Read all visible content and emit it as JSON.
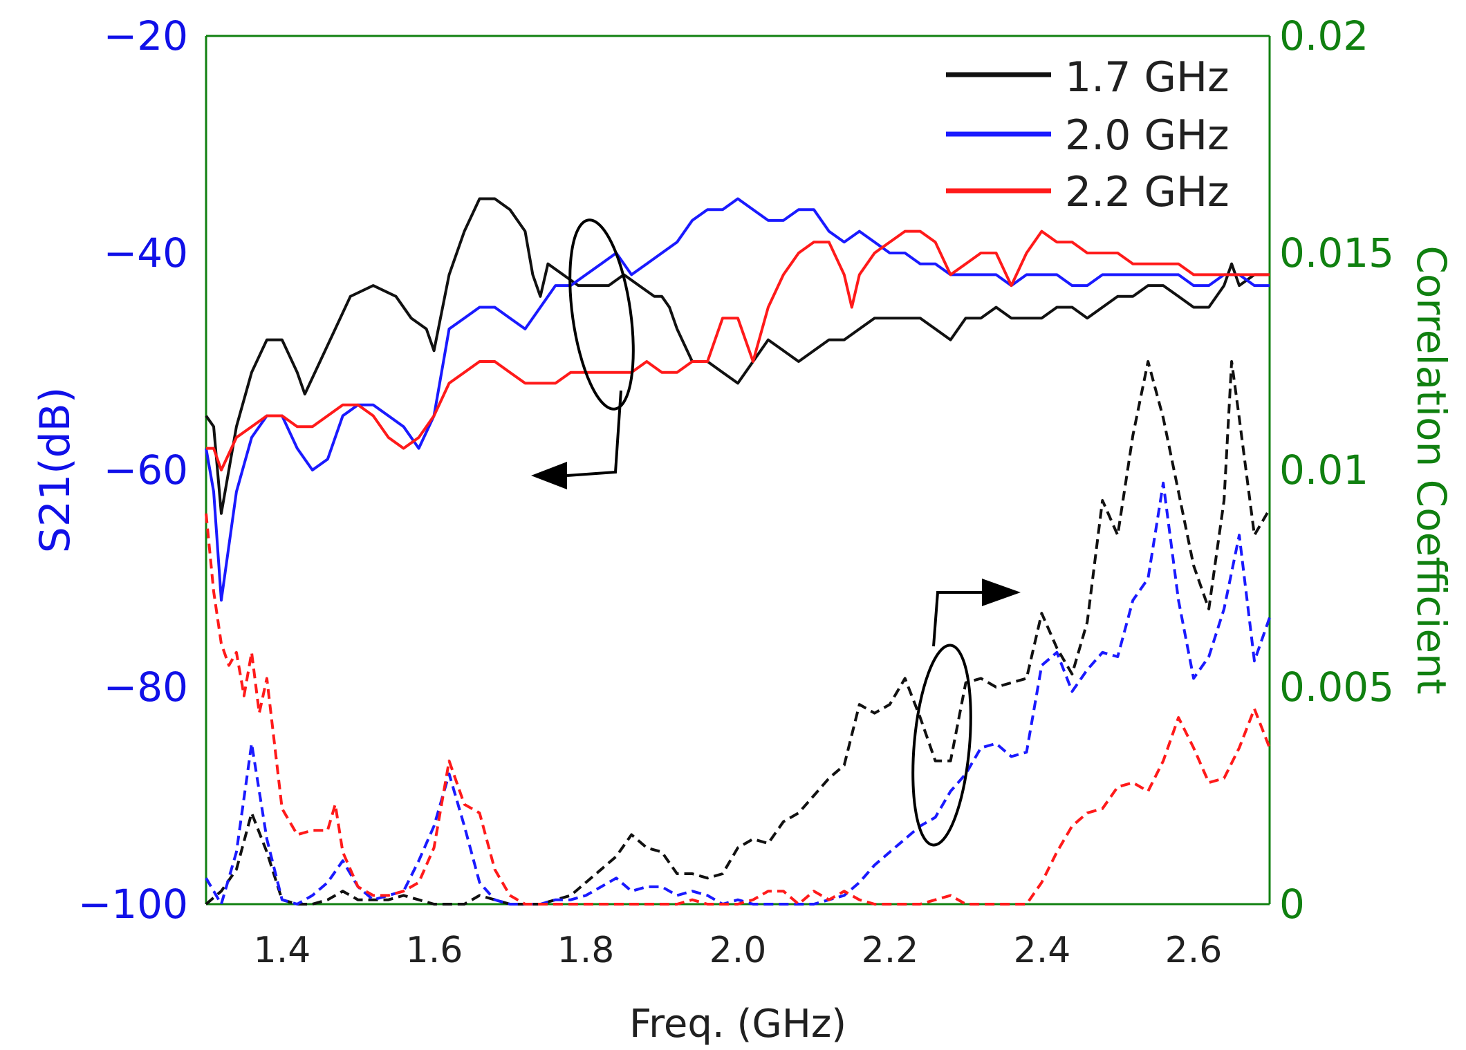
{
  "chart_data": {
    "type": "line",
    "title": "",
    "xlabel": "Freq. (GHz)",
    "ylabel_left": "S21(dB)",
    "ylabel_right": "Correlation Coefficient",
    "xlim": [
      1.3,
      2.7
    ],
    "ylim_left": [
      -100,
      -20
    ],
    "ylim_right": [
      0,
      0.02
    ],
    "x_ticks": [
      "1.4",
      "1.6",
      "1.8",
      "2.0",
      "2.2",
      "2.4",
      "2.6"
    ],
    "y_left_ticks": [
      "−20",
      "−40",
      "−60",
      "−80",
      "−100"
    ],
    "y_right_ticks": [
      "0.02",
      "0.015",
      "0.01",
      "0.005",
      "0"
    ],
    "colors": {
      "left_axis": "#1010e8",
      "right_axis": "#108010",
      "s_1_7": "#111111",
      "s_2_0": "#1a1aff",
      "s_2_2": "#ff1a1a"
    },
    "legend": [
      {
        "label": "1.7 GHz",
        "color": "#111111"
      },
      {
        "label": "2.0 GHz",
        "color": "#1a1aff"
      },
      {
        "label": "2.2 GHz",
        "color": "#ff1a1a"
      }
    ],
    "legend_position": "top-right",
    "series": [
      {
        "name": "1.7 GHz S21",
        "axis": "left",
        "style": "solid",
        "color": "#111111",
        "x": [
          1.3,
          1.31,
          1.32,
          1.34,
          1.36,
          1.38,
          1.4,
          1.42,
          1.43,
          1.45,
          1.47,
          1.49,
          1.52,
          1.55,
          1.57,
          1.59,
          1.6,
          1.62,
          1.64,
          1.66,
          1.68,
          1.7,
          1.72,
          1.73,
          1.74,
          1.75,
          1.77,
          1.79,
          1.81,
          1.83,
          1.85,
          1.87,
          1.89,
          1.9,
          1.91,
          1.92,
          1.94,
          1.96,
          1.98,
          2.0,
          2.02,
          2.04,
          2.06,
          2.08,
          2.1,
          2.12,
          2.14,
          2.16,
          2.18,
          2.2,
          2.22,
          2.24,
          2.26,
          2.28,
          2.3,
          2.32,
          2.34,
          2.36,
          2.38,
          2.4,
          2.42,
          2.44,
          2.46,
          2.48,
          2.5,
          2.52,
          2.54,
          2.56,
          2.58,
          2.6,
          2.62,
          2.64,
          2.65,
          2.66,
          2.68,
          2.7
        ],
        "y": [
          -55,
          -56,
          -64,
          -56,
          -51,
          -48,
          -48,
          -51,
          -53,
          -50,
          -47,
          -44,
          -43,
          -44,
          -46,
          -47,
          -49,
          -42,
          -38,
          -35,
          -35,
          -36,
          -38,
          -42,
          -44,
          -41,
          -42,
          -43,
          -43,
          -43,
          -42,
          -43,
          -44,
          -44,
          -45,
          -47,
          -50,
          -50,
          -51,
          -52,
          -50,
          -48,
          -49,
          -50,
          -49,
          -48,
          -48,
          -47,
          -46,
          -46,
          -46,
          -46,
          -47,
          -48,
          -46,
          -46,
          -45,
          -46,
          -46,
          -46,
          -45,
          -45,
          -46,
          -45,
          -44,
          -44,
          -43,
          -43,
          -44,
          -45,
          -45,
          -43,
          -41,
          -43,
          -42,
          -42
        ]
      },
      {
        "name": "2.0 GHz S21",
        "axis": "left",
        "style": "solid",
        "color": "#1a1aff",
        "x": [
          1.3,
          1.31,
          1.32,
          1.34,
          1.36,
          1.38,
          1.4,
          1.42,
          1.44,
          1.46,
          1.48,
          1.5,
          1.52,
          1.54,
          1.56,
          1.58,
          1.6,
          1.62,
          1.64,
          1.66,
          1.68,
          1.7,
          1.72,
          1.74,
          1.76,
          1.78,
          1.8,
          1.82,
          1.84,
          1.86,
          1.88,
          1.9,
          1.92,
          1.94,
          1.96,
          1.98,
          2.0,
          2.02,
          2.04,
          2.06,
          2.08,
          2.1,
          2.12,
          2.14,
          2.16,
          2.18,
          2.2,
          2.22,
          2.24,
          2.26,
          2.28,
          2.3,
          2.32,
          2.34,
          2.36,
          2.38,
          2.4,
          2.42,
          2.44,
          2.46,
          2.48,
          2.5,
          2.52,
          2.54,
          2.56,
          2.58,
          2.6,
          2.62,
          2.64,
          2.66,
          2.68,
          2.7
        ],
        "y": [
          -58,
          -62,
          -72,
          -62,
          -57,
          -55,
          -55,
          -58,
          -60,
          -59,
          -55,
          -54,
          -54,
          -55,
          -56,
          -58,
          -55,
          -47,
          -46,
          -45,
          -45,
          -46,
          -47,
          -45,
          -43,
          -43,
          -42,
          -41,
          -40,
          -42,
          -41,
          -40,
          -39,
          -37,
          -36,
          -36,
          -35,
          -36,
          -37,
          -37,
          -36,
          -36,
          -38,
          -39,
          -38,
          -39,
          -40,
          -40,
          -41,
          -41,
          -42,
          -42,
          -42,
          -42,
          -43,
          -42,
          -42,
          -42,
          -43,
          -43,
          -42,
          -42,
          -42,
          -42,
          -42,
          -42,
          -43,
          -43,
          -42,
          -42,
          -43,
          -43
        ]
      },
      {
        "name": "2.2 GHz S21",
        "axis": "left",
        "style": "solid",
        "color": "#ff1a1a",
        "x": [
          1.3,
          1.31,
          1.32,
          1.34,
          1.36,
          1.38,
          1.4,
          1.42,
          1.44,
          1.46,
          1.48,
          1.5,
          1.52,
          1.54,
          1.56,
          1.58,
          1.6,
          1.62,
          1.64,
          1.66,
          1.68,
          1.7,
          1.72,
          1.74,
          1.76,
          1.78,
          1.8,
          1.82,
          1.84,
          1.86,
          1.88,
          1.9,
          1.92,
          1.94,
          1.96,
          1.98,
          2.0,
          2.02,
          2.04,
          2.06,
          2.08,
          2.1,
          2.12,
          2.14,
          2.15,
          2.16,
          2.18,
          2.2,
          2.22,
          2.24,
          2.26,
          2.28,
          2.3,
          2.32,
          2.34,
          2.36,
          2.38,
          2.4,
          2.42,
          2.44,
          2.46,
          2.48,
          2.5,
          2.52,
          2.54,
          2.56,
          2.58,
          2.6,
          2.62,
          2.64,
          2.66,
          2.68,
          2.7
        ],
        "y": [
          -58,
          -58,
          -60,
          -57,
          -56,
          -55,
          -55,
          -56,
          -56,
          -55,
          -54,
          -54,
          -55,
          -57,
          -58,
          -57,
          -55,
          -52,
          -51,
          -50,
          -50,
          -51,
          -52,
          -52,
          -52,
          -51,
          -51,
          -51,
          -51,
          -51,
          -50,
          -51,
          -51,
          -50,
          -50,
          -46,
          -46,
          -50,
          -45,
          -42,
          -40,
          -39,
          -39,
          -42,
          -45,
          -42,
          -40,
          -39,
          -38,
          -38,
          -39,
          -42,
          -41,
          -40,
          -40,
          -43,
          -40,
          -38,
          -39,
          -39,
          -40,
          -40,
          -40,
          -41,
          -41,
          -41,
          -41,
          -42,
          -42,
          -42,
          -42,
          -42,
          -42
        ]
      },
      {
        "name": "1.7 GHz Correlation",
        "axis": "right",
        "style": "dashed",
        "color": "#111111",
        "x": [
          1.3,
          1.32,
          1.34,
          1.36,
          1.38,
          1.4,
          1.42,
          1.44,
          1.46,
          1.48,
          1.5,
          1.52,
          1.54,
          1.56,
          1.58,
          1.6,
          1.62,
          1.64,
          1.66,
          1.68,
          1.7,
          1.72,
          1.74,
          1.76,
          1.78,
          1.8,
          1.82,
          1.84,
          1.86,
          1.88,
          1.9,
          1.92,
          1.94,
          1.96,
          1.98,
          2.0,
          2.02,
          2.04,
          2.06,
          2.08,
          2.1,
          2.12,
          2.14,
          2.16,
          2.18,
          2.2,
          2.22,
          2.24,
          2.26,
          2.28,
          2.3,
          2.32,
          2.34,
          2.36,
          2.38,
          2.4,
          2.42,
          2.44,
          2.46,
          2.48,
          2.5,
          2.52,
          2.54,
          2.56,
          2.58,
          2.6,
          2.62,
          2.64,
          2.65,
          2.66,
          2.68,
          2.7
        ],
        "y": [
          0.0,
          0.0003,
          0.0008,
          0.0021,
          0.0012,
          0.0001,
          0.0,
          0.0,
          0.0001,
          0.0003,
          0.0001,
          0.0001,
          0.0001,
          0.0002,
          0.0001,
          0.0,
          0.0,
          0.0,
          0.0002,
          0.0001,
          0.0,
          0.0,
          0.0,
          0.0001,
          0.0002,
          0.0005,
          0.0008,
          0.0011,
          0.0016,
          0.0013,
          0.0012,
          0.0007,
          0.0007,
          0.0006,
          0.0007,
          0.0013,
          0.0015,
          0.0014,
          0.0019,
          0.0021,
          0.0025,
          0.0029,
          0.0032,
          0.0046,
          0.0044,
          0.0046,
          0.0052,
          0.0043,
          0.0033,
          0.0033,
          0.0051,
          0.0052,
          0.005,
          0.0051,
          0.0052,
          0.0067,
          0.0059,
          0.0053,
          0.0065,
          0.0093,
          0.0085,
          0.0108,
          0.0125,
          0.0112,
          0.0095,
          0.0078,
          0.0068,
          0.0093,
          0.0125,
          0.0112,
          0.0085,
          0.0091
        ]
      },
      {
        "name": "2.0 GHz Correlation",
        "axis": "right",
        "style": "dashed",
        "color": "#1a1aff",
        "x": [
          1.3,
          1.32,
          1.34,
          1.36,
          1.38,
          1.4,
          1.42,
          1.44,
          1.46,
          1.48,
          1.5,
          1.52,
          1.54,
          1.56,
          1.58,
          1.6,
          1.62,
          1.64,
          1.66,
          1.68,
          1.7,
          1.72,
          1.74,
          1.76,
          1.78,
          1.8,
          1.82,
          1.84,
          1.86,
          1.88,
          1.9,
          1.92,
          1.94,
          1.96,
          1.98,
          2.0,
          2.02,
          2.04,
          2.06,
          2.08,
          2.1,
          2.12,
          2.14,
          2.16,
          2.18,
          2.2,
          2.22,
          2.24,
          2.26,
          2.28,
          2.3,
          2.32,
          2.34,
          2.36,
          2.38,
          2.4,
          2.42,
          2.44,
          2.46,
          2.48,
          2.5,
          2.52,
          2.54,
          2.56,
          2.58,
          2.6,
          2.62,
          2.64,
          2.66,
          2.68,
          2.7
        ],
        "y": [
          0.0006,
          0.0,
          0.0012,
          0.0037,
          0.0015,
          0.0001,
          0.0,
          0.0002,
          0.0005,
          0.001,
          0.0004,
          0.0001,
          0.0002,
          0.0003,
          0.001,
          0.0018,
          0.003,
          0.0018,
          0.0005,
          0.0001,
          0.0,
          0.0,
          0.0,
          0.0001,
          0.0001,
          0.0002,
          0.0004,
          0.0006,
          0.0003,
          0.0004,
          0.0004,
          0.0002,
          0.0003,
          0.0002,
          0.0,
          0.0001,
          0.0,
          0.0,
          0.0,
          0.0,
          0.0,
          0.0001,
          0.0002,
          0.0005,
          0.0009,
          0.0012,
          0.0015,
          0.0018,
          0.002,
          0.0026,
          0.003,
          0.0036,
          0.0037,
          0.0034,
          0.0035,
          0.0055,
          0.0058,
          0.0049,
          0.0054,
          0.0058,
          0.0057,
          0.007,
          0.0075,
          0.0097,
          0.007,
          0.0052,
          0.0057,
          0.0068,
          0.0085,
          0.0056,
          0.0066
        ]
      },
      {
        "name": "2.2 GHz Correlation",
        "axis": "right",
        "style": "dashed",
        "color": "#ff1a1a",
        "x": [
          1.3,
          1.31,
          1.32,
          1.33,
          1.34,
          1.35,
          1.36,
          1.37,
          1.38,
          1.4,
          1.42,
          1.44,
          1.46,
          1.47,
          1.48,
          1.5,
          1.52,
          1.54,
          1.56,
          1.58,
          1.6,
          1.62,
          1.64,
          1.66,
          1.68,
          1.7,
          1.72,
          1.74,
          1.76,
          1.78,
          1.8,
          1.82,
          1.84,
          1.86,
          1.88,
          1.9,
          1.92,
          1.94,
          1.96,
          1.98,
          2.0,
          2.02,
          2.04,
          2.06,
          2.08,
          2.1,
          2.12,
          2.14,
          2.16,
          2.18,
          2.2,
          2.22,
          2.24,
          2.26,
          2.28,
          2.3,
          2.32,
          2.34,
          2.36,
          2.38,
          2.4,
          2.42,
          2.44,
          2.46,
          2.48,
          2.5,
          2.52,
          2.54,
          2.56,
          2.58,
          2.6,
          2.62,
          2.64,
          2.66,
          2.68,
          2.7
        ],
        "y": [
          0.009,
          0.0072,
          0.006,
          0.0055,
          0.0058,
          0.0048,
          0.0058,
          0.0044,
          0.0052,
          0.0022,
          0.0016,
          0.0017,
          0.0017,
          0.0023,
          0.0012,
          0.0004,
          0.0002,
          0.0002,
          0.0003,
          0.0005,
          0.0013,
          0.0033,
          0.0023,
          0.0021,
          0.0008,
          0.0002,
          0.0,
          0.0,
          0.0,
          0.0,
          0.0,
          0.0,
          0.0,
          0.0,
          0.0,
          0.0,
          0.0,
          0.0001,
          0.0,
          0.0,
          0.0,
          0.0001,
          0.0003,
          0.0003,
          0.0,
          0.0003,
          0.0001,
          0.0003,
          0.0001,
          0.0,
          0.0,
          0.0,
          0.0,
          0.0001,
          0.0002,
          0.0,
          0.0,
          0.0,
          0.0,
          0.0,
          0.0005,
          0.0012,
          0.0018,
          0.0021,
          0.0022,
          0.0027,
          0.0028,
          0.0026,
          0.0033,
          0.0043,
          0.0036,
          0.0028,
          0.0029,
          0.0036,
          0.0045,
          0.0036
        ]
      }
    ]
  }
}
